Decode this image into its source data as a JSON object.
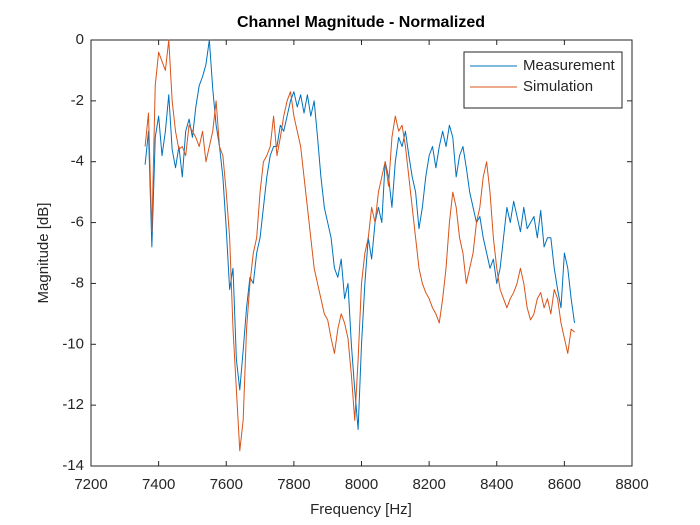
{
  "chart_data": {
    "type": "line",
    "title": "Channel Magnitude - Normalized",
    "x_label": "Frequency [Hz]",
    "y_label": "Magnitude [dB]",
    "xlim": [
      7200,
      8800
    ],
    "xticks": [
      7200,
      7400,
      7600,
      7800,
      8000,
      8200,
      8400,
      8600,
      8800
    ],
    "ylim": [
      -14,
      0
    ],
    "yticks": [
      -14,
      -12,
      -10,
      -8,
      -6,
      -4,
      -2,
      0
    ],
    "grid": false,
    "legend_position": "northeast",
    "x": [
      7360,
      7370,
      7380,
      7390,
      7400,
      7410,
      7420,
      7430,
      7440,
      7450,
      7460,
      7470,
      7480,
      7490,
      7500,
      7510,
      7520,
      7530,
      7540,
      7550,
      7560,
      7570,
      7580,
      7590,
      7600,
      7610,
      7620,
      7630,
      7640,
      7650,
      7660,
      7670,
      7680,
      7690,
      7700,
      7710,
      7720,
      7730,
      7740,
      7750,
      7760,
      7770,
      7780,
      7790,
      7800,
      7810,
      7820,
      7830,
      7840,
      7850,
      7860,
      7870,
      7880,
      7890,
      7900,
      7910,
      7920,
      7930,
      7940,
      7950,
      7960,
      7970,
      7980,
      7990,
      8000,
      8010,
      8020,
      8030,
      8040,
      8050,
      8060,
      8070,
      8080,
      8090,
      8100,
      8110,
      8120,
      8130,
      8140,
      8150,
      8160,
      8170,
      8180,
      8190,
      8200,
      8210,
      8220,
      8230,
      8240,
      8250,
      8260,
      8270,
      8280,
      8290,
      8300,
      8310,
      8320,
      8330,
      8340,
      8350,
      8360,
      8370,
      8380,
      8390,
      8400,
      8410,
      8420,
      8430,
      8440,
      8450,
      8460,
      8470,
      8480,
      8490,
      8500,
      8510,
      8520,
      8530,
      8540,
      8550,
      8560,
      8570,
      8580,
      8590,
      8600,
      8610,
      8620,
      8630
    ],
    "series": [
      {
        "name": "Measurement",
        "color": "#0072bd",
        "values": [
          -4.1,
          -3.0,
          -6.8,
          -3.2,
          -2.5,
          -3.8,
          -3.0,
          -1.8,
          -3.6,
          -4.2,
          -3.5,
          -4.5,
          -3.0,
          -2.6,
          -3.2,
          -2.2,
          -1.5,
          -1.2,
          -0.8,
          0,
          -1.6,
          -2.8,
          -3.5,
          -4.5,
          -6.2,
          -8.2,
          -7.5,
          -10.5,
          -11.5,
          -10.2,
          -8.8,
          -7.8,
          -8.0,
          -7.0,
          -6.5,
          -5.5,
          -4.5,
          -3.8,
          -3.5,
          -3.5,
          -2.8,
          -3.0,
          -2.5,
          -2.0,
          -1.7,
          -2.2,
          -1.8,
          -2.4,
          -1.8,
          -2.5,
          -2.0,
          -3.2,
          -4.5,
          -5.5,
          -6.0,
          -6.5,
          -7.5,
          -7.8,
          -7.2,
          -8.5,
          -8.0,
          -10.0,
          -11.5,
          -12.8,
          -10.0,
          -8.0,
          -6.5,
          -7.2,
          -6.0,
          -5.5,
          -6.0,
          -4.0,
          -4.5,
          -5.5,
          -4.0,
          -3.2,
          -3.5,
          -3.0,
          -3.8,
          -4.5,
          -5.0,
          -6.2,
          -5.5,
          -4.5,
          -3.8,
          -3.5,
          -4.2,
          -3.5,
          -3.0,
          -3.5,
          -2.8,
          -3.2,
          -4.5,
          -3.8,
          -3.5,
          -4.2,
          -5.0,
          -5.5,
          -6.0,
          -5.8,
          -6.5,
          -7.0,
          -7.5,
          -7.2,
          -8.0,
          -7.5,
          -6.5,
          -5.5,
          -6.0,
          -5.3,
          -5.8,
          -6.3,
          -5.5,
          -6.2,
          -6.0,
          -5.8,
          -6.5,
          -5.6,
          -6.8,
          -6.5,
          -6.5,
          -7.5,
          -8.2,
          -8.8,
          -7.0,
          -7.5,
          -8.5,
          -9.3
        ]
      },
      {
        "name": "Simulation",
        "color": "#d95319",
        "values": [
          -3.5,
          -2.4,
          -6.3,
          -1.5,
          -0.4,
          -0.7,
          -1.0,
          0,
          -2.0,
          -3.0,
          -3.6,
          -3.5,
          -3.8,
          -2.8,
          -3.0,
          -3.2,
          -3.5,
          -3.0,
          -4.0,
          -3.5,
          -3.0,
          -2.0,
          -3.5,
          -3.8,
          -5.0,
          -6.5,
          -9.5,
          -11.5,
          -13.5,
          -12.5,
          -9.5,
          -8.0,
          -7.0,
          -6.5,
          -5.0,
          -4.0,
          -3.8,
          -3.5,
          -2.5,
          -3.8,
          -3.2,
          -2.5,
          -2.0,
          -1.7,
          -2.5,
          -3.0,
          -3.5,
          -4.5,
          -5.5,
          -6.5,
          -7.5,
          -8.0,
          -8.5,
          -9.0,
          -9.2,
          -9.8,
          -10.3,
          -9.5,
          -9.0,
          -9.3,
          -9.8,
          -11.0,
          -12.5,
          -10.5,
          -8.0,
          -7.0,
          -6.5,
          -5.5,
          -6.0,
          -5.0,
          -4.5,
          -4.0,
          -4.8,
          -3.2,
          -2.5,
          -3.0,
          -2.8,
          -3.5,
          -4.5,
          -5.5,
          -6.5,
          -7.5,
          -8.0,
          -8.3,
          -8.5,
          -8.8,
          -9.0,
          -9.3,
          -8.5,
          -7.5,
          -6.0,
          -5.0,
          -5.5,
          -6.5,
          -7.0,
          -8.0,
          -7.5,
          -7.0,
          -6.0,
          -5.5,
          -4.5,
          -4.0,
          -5.0,
          -6.5,
          -7.5,
          -8.2,
          -8.5,
          -8.8,
          -8.5,
          -8.3,
          -8.0,
          -7.5,
          -8.0,
          -8.8,
          -9.2,
          -9.0,
          -8.5,
          -8.3,
          -8.8,
          -8.5,
          -9.0,
          -8.2,
          -8.5,
          -9.3,
          -9.8,
          -10.3,
          -9.5,
          -9.6
        ]
      }
    ]
  }
}
